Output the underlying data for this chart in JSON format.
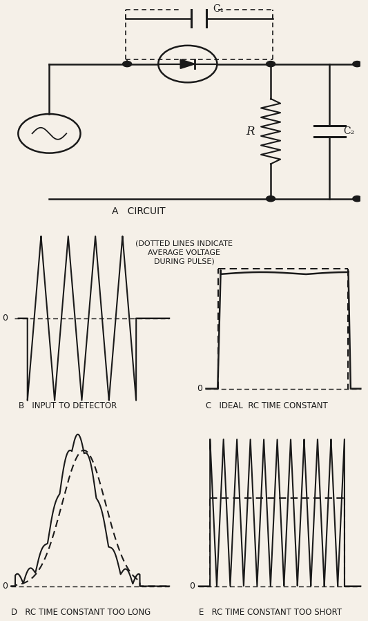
{
  "bg_color": "#f5f0e8",
  "line_color": "#1a1a1a",
  "panel_A_label": "A   CIRCUIT",
  "panel_B_label": "B   INPUT TO DETECTOR",
  "panel_C_label": "C   IDEAL  RC TIME CONSTANT",
  "panel_D_label": "D   RC TIME CONSTANT TOO LONG",
  "panel_E_label": "E   RC TIME CONSTANT TOO SHORT",
  "dotted_note": "(DOTTED LINES INDICATE\nAVERAGE VOLTAGE\nDURING PULSE)"
}
